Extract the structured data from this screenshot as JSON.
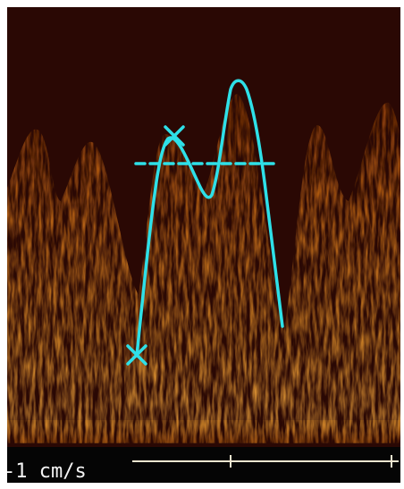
{
  "scale_label": "-1 cm/s"
}
